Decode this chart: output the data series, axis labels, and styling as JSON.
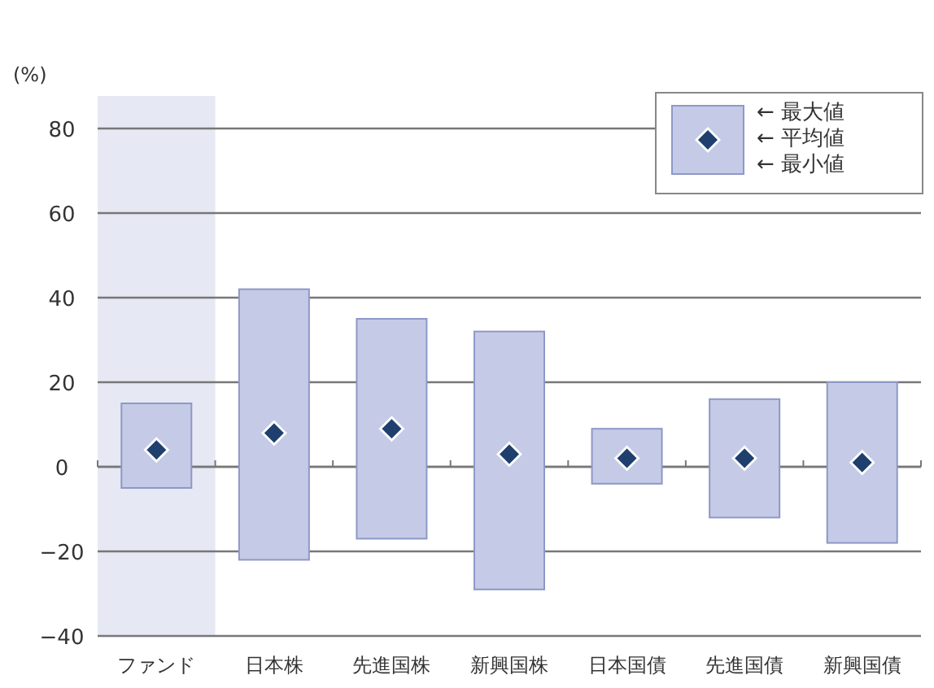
{
  "chart_data": {
    "type": "bar",
    "ylabel": "(%)",
    "categories": [
      "ファンド",
      "日本株",
      "先進国株",
      "新興国株",
      "日本国債",
      "先進国債",
      "新興国債"
    ],
    "series": [
      {
        "color": "#c5cbe6",
        "base": [
          -5,
          -22,
          -17,
          -29,
          -4,
          -12,
          -18
        ],
        "values": [
          20,
          64,
          52,
          61,
          13,
          28,
          38
        ]
      },
      {
        "type": "scatter",
        "name": "← 平均値",
        "color": "#1f3f6e",
        "marker": "diamond",
        "values": [
          4,
          8,
          9,
          3,
          2,
          2,
          1
        ]
      }
    ],
    "ylim": [
      -40,
      80
    ],
    "yticks": [
      {
        "value": -40,
        "label": "−40"
      },
      {
        "value": -20,
        "label": "−20"
      },
      0,
      20,
      40,
      60,
      80
    ],
    "grid": "y",
    "legend": "top right",
    "bands": [
      {
        "axis": "x",
        "from": "ファンド",
        "to": "ファンド",
        "color": "#e6e8f3"
      }
    ],
    "annotations": [
      "← 最大値",
      "← 最小値"
    ]
  }
}
